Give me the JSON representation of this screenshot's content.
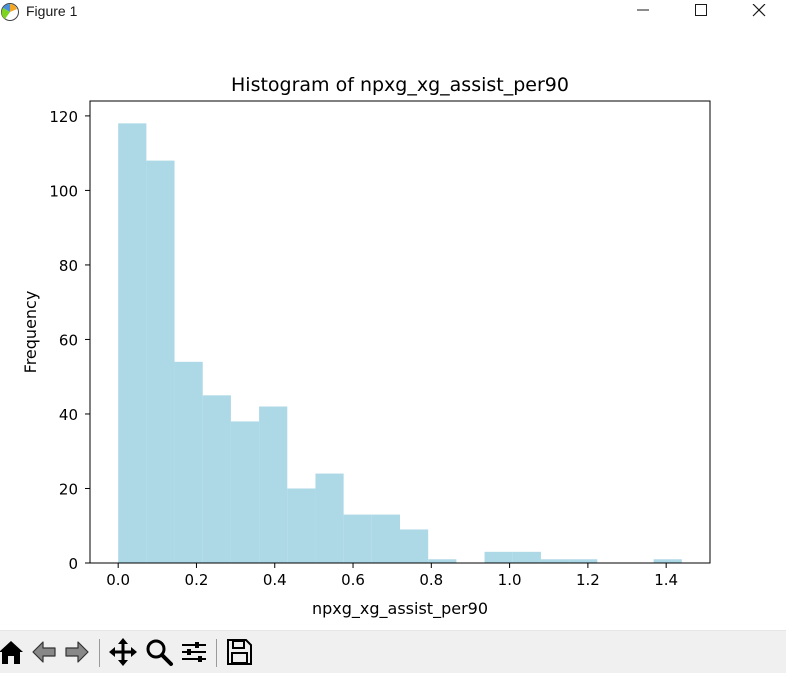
{
  "window": {
    "title": "Figure 1",
    "controls": [
      "minimize",
      "maximize",
      "close"
    ]
  },
  "toolbar": {
    "buttons": [
      "home-icon",
      "back-arrow-icon",
      "forward-arrow-icon",
      "pan-icon",
      "zoom-icon",
      "configure-subplots-icon",
      "save-icon"
    ]
  },
  "colors": {
    "bar": "#add8e6",
    "toolbar_bg": "#f0f0f0"
  },
  "chart_data": {
    "type": "bar",
    "title": "Histogram of npxg_xg_assist_per90",
    "xlabel": "npxg_xg_assist_per90",
    "ylabel": "Frequency",
    "bin_edges": [
      0.0,
      0.072,
      0.144,
      0.216,
      0.288,
      0.36,
      0.432,
      0.504,
      0.576,
      0.648,
      0.72,
      0.792,
      0.864,
      0.936,
      1.008,
      1.08,
      1.152,
      1.224,
      1.296,
      1.368,
      1.44
    ],
    "values": [
      118,
      108,
      54,
      45,
      38,
      42,
      20,
      24,
      13,
      13,
      9,
      1,
      0,
      3,
      3,
      1,
      1,
      0,
      0,
      1
    ],
    "xlim": [
      -0.072,
      1.512
    ],
    "ylim": [
      0,
      124
    ],
    "xticks": [
      0.0,
      0.2,
      0.4,
      0.6,
      0.8,
      1.0,
      1.2,
      1.4
    ],
    "xtick_labels": [
      "0.0",
      "0.2",
      "0.4",
      "0.6",
      "0.8",
      "1.0",
      "1.2",
      "1.4"
    ],
    "yticks": [
      0,
      20,
      40,
      60,
      80,
      100,
      120
    ],
    "ytick_labels": [
      "0",
      "20",
      "40",
      "60",
      "80",
      "100",
      "120"
    ],
    "grid": false
  }
}
